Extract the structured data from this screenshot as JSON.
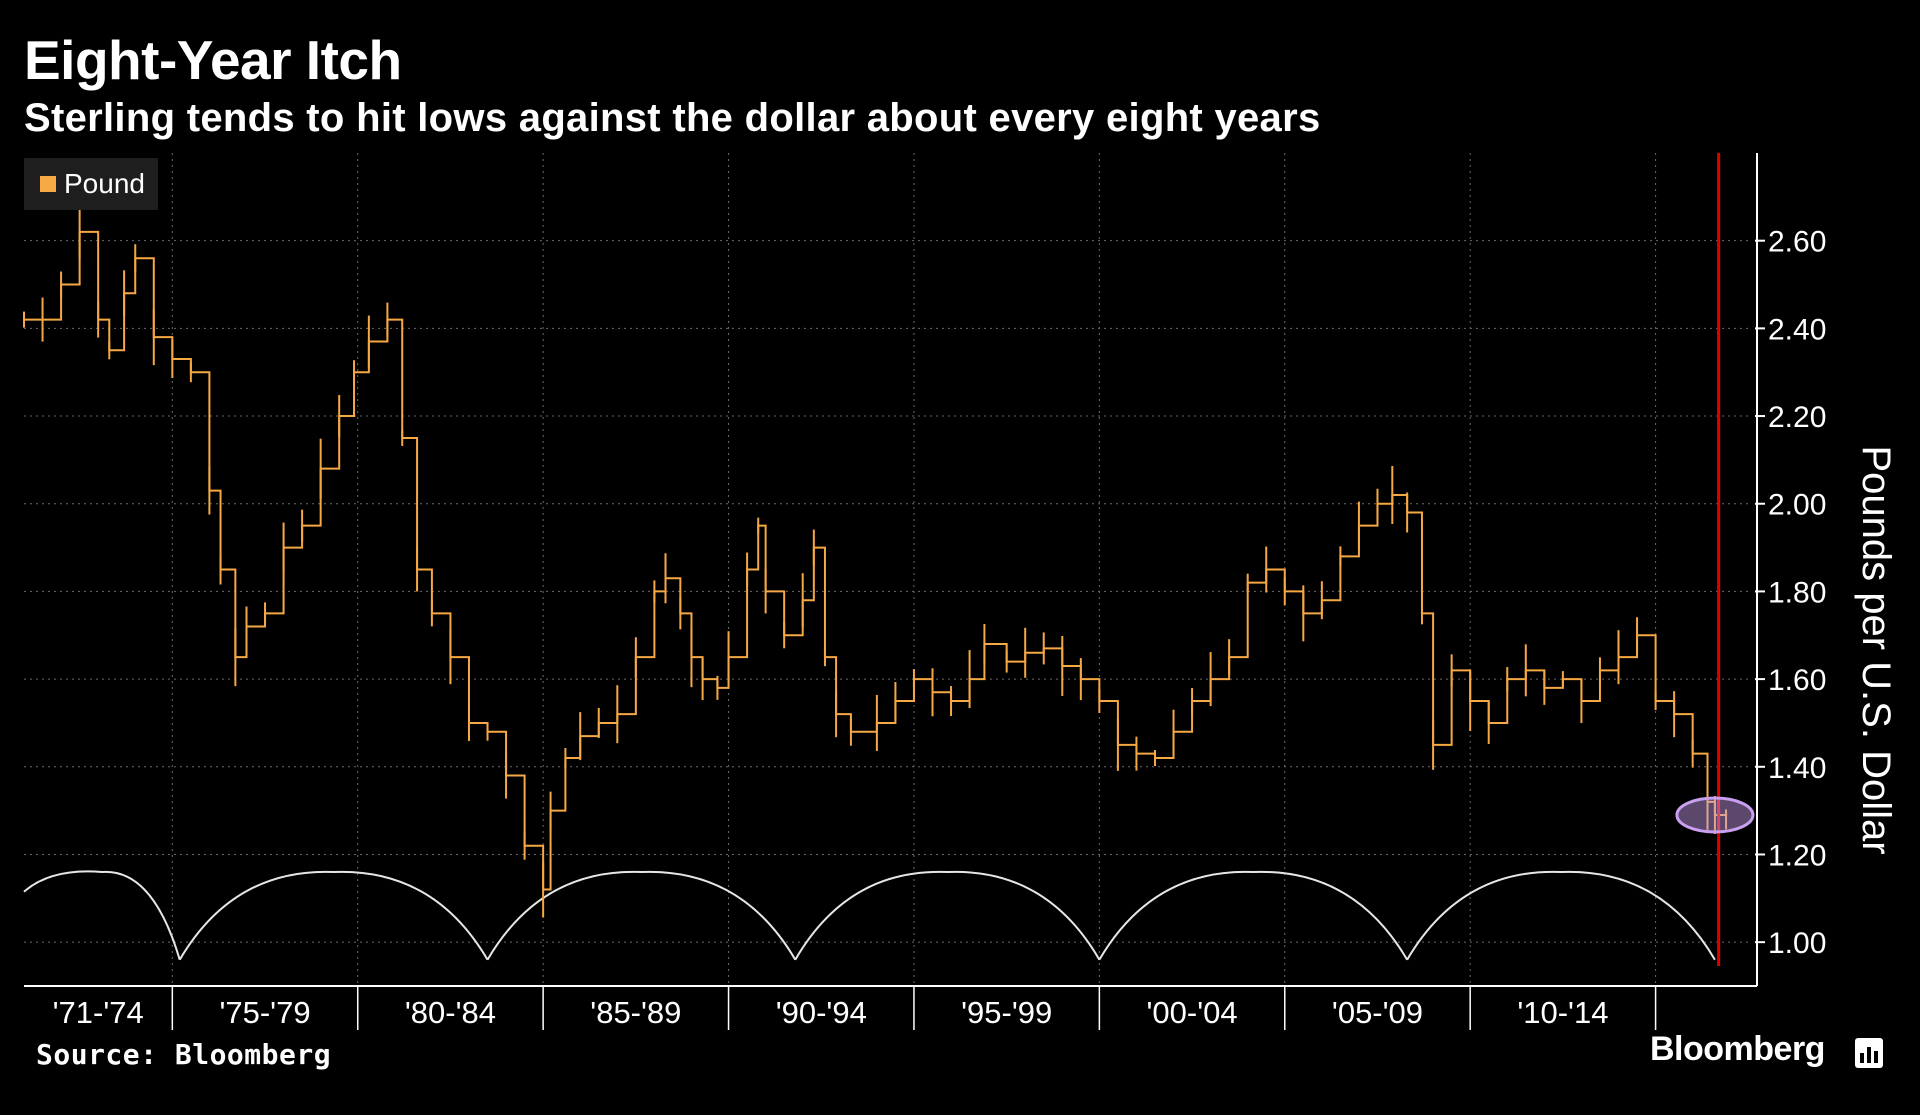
{
  "title": "Eight-Year Itch",
  "subtitle": "Sterling tends to hit lows against the dollar about every eight years",
  "source": "Source: Bloomberg",
  "logo_text": "Bloomberg",
  "colors": {
    "series": "#f5a843",
    "cycle": "#e6e6e6",
    "marker": "#e00000",
    "highlight": "#c9a0f0"
  },
  "chart_data": {
    "type": "line",
    "ylabel": "Pounds per U.S. Dollar",
    "ylim": [
      0.9,
      2.8
    ],
    "yticks": [
      "1.00",
      "1.20",
      "1.40",
      "1.60",
      "1.80",
      "2.00",
      "2.20",
      "2.40",
      "2.60"
    ],
    "xlim": [
      1971.0,
      2017.6
    ],
    "categories": [
      "'71-'74",
      "'75-'79",
      "'80-'84",
      "'85-'89",
      "'90-'94",
      "'95-'99",
      "'00-'04",
      "'05-'09",
      "'10-'14"
    ],
    "category_ranges": [
      [
        1971,
        1975
      ],
      [
        1975,
        1980
      ],
      [
        1980,
        1985
      ],
      [
        1985,
        1990
      ],
      [
        1990,
        1995
      ],
      [
        1995,
        2000
      ],
      [
        2000,
        2005
      ],
      [
        2005,
        2010
      ],
      [
        2010,
        2015
      ]
    ],
    "grid": true,
    "legend": {
      "position": "top-left",
      "entries": [
        "Pound"
      ]
    },
    "series": [
      {
        "name": "Pound",
        "x": [
          1971.0,
          1971.5,
          1972.0,
          1972.5,
          1973.0,
          1973.3,
          1973.7,
          1974.0,
          1974.5,
          1975.0,
          1975.5,
          1976.0,
          1976.3,
          1976.7,
          1977.0,
          1977.5,
          1978.0,
          1978.5,
          1979.0,
          1979.5,
          1979.9,
          1980.3,
          1980.8,
          1981.2,
          1981.6,
          1982.0,
          1982.5,
          1983.0,
          1983.5,
          1984.0,
          1984.5,
          1985.0,
          1985.2,
          1985.6,
          1986.0,
          1986.5,
          1987.0,
          1987.5,
          1988.0,
          1988.3,
          1988.7,
          1989.0,
          1989.3,
          1989.7,
          1990.0,
          1990.5,
          1990.8,
          1991.0,
          1991.5,
          1992.0,
          1992.3,
          1992.6,
          1992.9,
          1993.3,
          1994.0,
          1994.5,
          1995.0,
          1995.5,
          1996.0,
          1996.5,
          1996.9,
          1997.5,
          1998.0,
          1998.5,
          1999.0,
          1999.5,
          2000.0,
          2000.5,
          2001.0,
          2001.5,
          2002.0,
          2002.5,
          2003.0,
          2003.5,
          2004.0,
          2004.5,
          2005.0,
          2005.5,
          2006.0,
          2006.5,
          2007.0,
          2007.5,
          2007.9,
          2008.3,
          2008.7,
          2009.0,
          2009.5,
          2010.0,
          2010.5,
          2011.0,
          2011.5,
          2012.0,
          2012.5,
          2013.0,
          2013.5,
          2014.0,
          2014.5,
          2015.0,
          2015.5,
          2016.0,
          2016.4,
          2016.6,
          2016.9
        ],
        "y": [
          2.42,
          2.42,
          2.5,
          2.62,
          2.42,
          2.35,
          2.48,
          2.56,
          2.38,
          2.33,
          2.3,
          2.03,
          1.85,
          1.65,
          1.72,
          1.75,
          1.9,
          1.95,
          2.08,
          2.2,
          2.3,
          2.37,
          2.42,
          2.15,
          1.85,
          1.75,
          1.65,
          1.5,
          1.48,
          1.38,
          1.22,
          1.12,
          1.3,
          1.42,
          1.47,
          1.5,
          1.52,
          1.65,
          1.8,
          1.83,
          1.75,
          1.65,
          1.6,
          1.58,
          1.65,
          1.85,
          1.95,
          1.8,
          1.7,
          1.78,
          1.9,
          1.65,
          1.52,
          1.48,
          1.5,
          1.55,
          1.6,
          1.57,
          1.55,
          1.6,
          1.68,
          1.64,
          1.66,
          1.67,
          1.63,
          1.6,
          1.55,
          1.45,
          1.43,
          1.42,
          1.48,
          1.55,
          1.6,
          1.65,
          1.82,
          1.85,
          1.8,
          1.75,
          1.78,
          1.88,
          1.95,
          2.0,
          2.02,
          1.98,
          1.75,
          1.45,
          1.62,
          1.55,
          1.5,
          1.6,
          1.62,
          1.58,
          1.6,
          1.55,
          1.62,
          1.65,
          1.7,
          1.55,
          1.52,
          1.43,
          1.32,
          1.29,
          1.28
        ]
      }
    ],
    "cycle_arcs": {
      "lows": [
        1975.2,
        1983.5,
        1991.8,
        2000.0,
        2008.3,
        2016.6
      ],
      "peak": 1.16,
      "trough": 0.96
    },
    "highlight": {
      "x": 2016.6,
      "y": 1.29
    },
    "event_line_x": 2016.7
  }
}
